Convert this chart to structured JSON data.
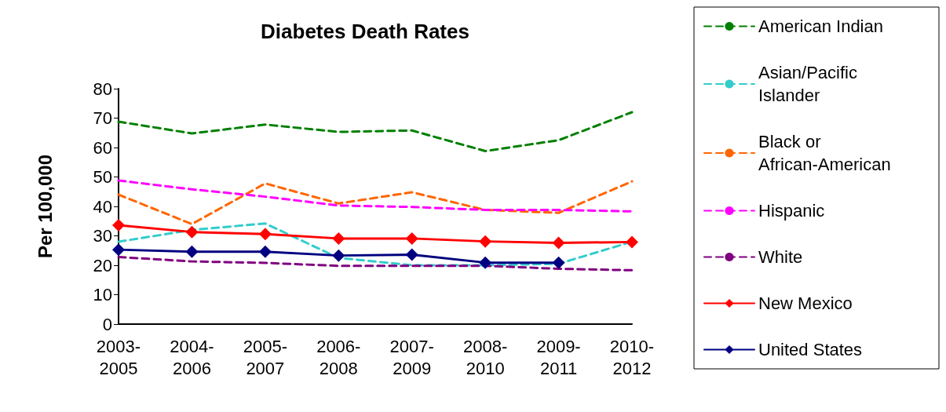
{
  "chart_data": {
    "type": "line",
    "title": "Diabetes Death Rates",
    "ylabel": "Per 100,000",
    "categories": [
      "2003-2005",
      "2004-2006",
      "2005-2007",
      "2006-2008",
      "2007-2009",
      "2008-2010",
      "2009-2011",
      "2010-2012"
    ],
    "ylim": [
      0,
      80
    ],
    "yticks": [
      0,
      10,
      20,
      30,
      40,
      50,
      60,
      70,
      80
    ],
    "grid": false,
    "legend": "right",
    "series": [
      {
        "name": "American Indian",
        "color": "#008000",
        "line_style": "dashed",
        "marker": "none",
        "values": [
          68.8,
          64.8,
          67.8,
          65.3,
          65.8,
          58.8,
          62.5,
          72
        ]
      },
      {
        "name": "Asian/Pacific Islander",
        "color": "#33cccc",
        "line_style": "dashed",
        "marker": "none",
        "values": [
          28,
          32,
          34.2,
          22.5,
          20,
          20,
          20.5,
          28
        ]
      },
      {
        "name": "Black or African-American",
        "color": "#ff6600",
        "line_style": "dashed",
        "marker": "none",
        "values": [
          44,
          34,
          47.8,
          41,
          44.8,
          38.8,
          37.8,
          48.5
        ]
      },
      {
        "name": "Hispanic",
        "color": "#ff00ff",
        "line_style": "dashed",
        "marker": "none",
        "values": [
          48.8,
          45.8,
          43.3,
          40.3,
          39.8,
          38.8,
          38.8,
          38.3
        ]
      },
      {
        "name": "White",
        "color": "#800080",
        "line_style": "dashed",
        "marker": "none",
        "values": [
          22.8,
          21.3,
          20.8,
          19.8,
          19.8,
          19.8,
          18.8,
          18.3
        ]
      },
      {
        "name": "New Mexico",
        "color": "#ff0000",
        "line_style": "solid",
        "marker": "diamond",
        "values": [
          33.6,
          31.3,
          30.6,
          29.1,
          29.1,
          28.1,
          27.6,
          27.9
        ]
      },
      {
        "name": "United States",
        "color": "#000080",
        "line_style": "solid",
        "marker": "diamond",
        "values": [
          25.3,
          24.6,
          24.6,
          23.3,
          23.6,
          20.9,
          20.9,
          null
        ]
      }
    ]
  }
}
